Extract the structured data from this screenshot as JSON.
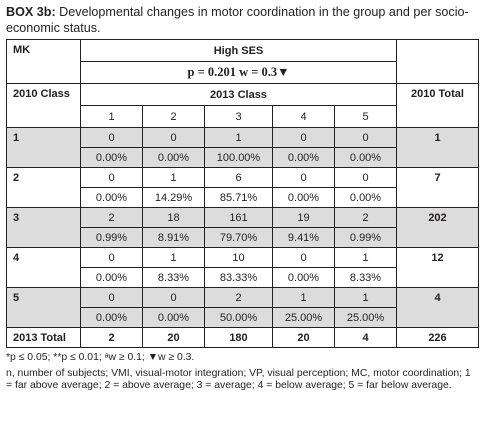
{
  "caption": {
    "label": "BOX 3b:",
    "text": " Developmental changes in motor coordination in the group and per socio-economic status."
  },
  "header": {
    "mk": "MK",
    "group": "High SES",
    "stats": "p = 0.201 w = 0.3▼",
    "row_label": "2010 Class",
    "col_group": "2013 Class",
    "total_label": "2010 Total",
    "columns": [
      "1",
      "2",
      "3",
      "4",
      "5"
    ]
  },
  "rows": [
    {
      "label": "1",
      "counts": [
        "0",
        "0",
        "1",
        "0",
        "0"
      ],
      "pcts": [
        "0.00%",
        "0.00%",
        "100.00%",
        "0.00%",
        "0.00%"
      ],
      "total": "1"
    },
    {
      "label": "2",
      "counts": [
        "0",
        "1",
        "6",
        "0",
        "0"
      ],
      "pcts": [
        "0.00%",
        "14.29%",
        "85.71%",
        "0.00%",
        "0.00%"
      ],
      "total": "7"
    },
    {
      "label": "3",
      "counts": [
        "2",
        "18",
        "161",
        "19",
        "2"
      ],
      "pcts": [
        "0.99%",
        "8.91%",
        "79.70%",
        "9.41%",
        "0.99%"
      ],
      "total": "202"
    },
    {
      "label": "4",
      "counts": [
        "0",
        "1",
        "10",
        "0",
        "1"
      ],
      "pcts": [
        "0.00%",
        "8.33%",
        "83.33%",
        "0.00%",
        "8.33%"
      ],
      "total": "12"
    },
    {
      "label": "5",
      "counts": [
        "0",
        "0",
        "2",
        "1",
        "1"
      ],
      "pcts": [
        "0.00%",
        "0.00%",
        "50.00%",
        "25.00%",
        "25.00%"
      ],
      "total": "4"
    }
  ],
  "totals": {
    "label": "2013 Total",
    "values": [
      "2",
      "20",
      "180",
      "20",
      "4"
    ],
    "grand": "226"
  },
  "footnotes": {
    "significance": "*p ≤ 0.05; **p ≤ 0.01; ᵃw ≥ 0.1; ▼w ≥ 0.3.",
    "abbreviations": "n, number of subjects; VMI, visual-motor integration; VP, visual perception; MC, motor coordination; 1 = far above average; 2 = above average; 3 = average; 4 = below average; 5 = far below average."
  }
}
